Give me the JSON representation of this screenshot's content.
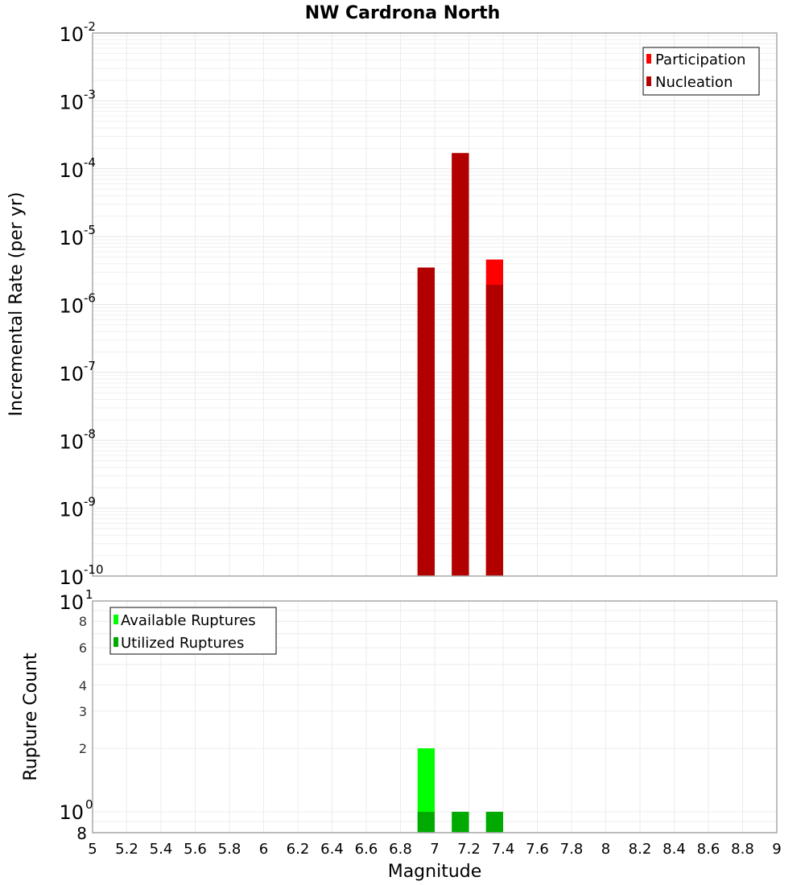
{
  "chart_data": [
    {
      "type": "bar",
      "title": "NW Cardrona North",
      "xlabel": "Magnitude",
      "ylabel": "Incremental Rate (per yr)",
      "yscale": "log",
      "xlim": [
        5,
        9
      ],
      "ylim": [
        1e-10,
        0.01
      ],
      "bar_width": 0.1,
      "grid": true,
      "legend_position": "top-right",
      "x": [
        6.95,
        7.15,
        7.35
      ],
      "series": [
        {
          "name": "Participation",
          "color": "#ff0000",
          "values": [
            3.5e-06,
            0.00017,
            4.6e-06
          ]
        },
        {
          "name": "Nucleation",
          "color": "#b20000",
          "values": [
            3.5e-06,
            0.00017,
            1.95e-06
          ]
        }
      ],
      "y_ticks": [
        {
          "base": "10",
          "exp": "-2"
        },
        {
          "base": "10",
          "exp": "-3"
        },
        {
          "base": "10",
          "exp": "-4"
        },
        {
          "base": "10",
          "exp": "-5"
        },
        {
          "base": "10",
          "exp": "-6"
        },
        {
          "base": "10",
          "exp": "-7"
        },
        {
          "base": "10",
          "exp": "-8"
        },
        {
          "base": "10",
          "exp": "-9"
        },
        {
          "base": "10",
          "exp": "-10"
        }
      ]
    },
    {
      "type": "bar",
      "title": "",
      "xlabel": "Magnitude",
      "ylabel": "Rupture Count",
      "yscale": "log",
      "xlim": [
        5,
        9
      ],
      "ylim": [
        0.8,
        10
      ],
      "bar_width": 0.1,
      "grid": true,
      "legend_position": "top-left",
      "x": [
        6.95,
        7.15,
        7.35
      ],
      "series": [
        {
          "name": "Available Ruptures",
          "color": "#00ff00",
          "values": [
            2,
            1,
            1
          ]
        },
        {
          "name": "Utilized Ruptures",
          "color": "#00aa00",
          "values": [
            1,
            1,
            1
          ]
        }
      ],
      "y_ticks": [
        "10^1",
        "8",
        "6",
        "4",
        "3",
        "2",
        "10^0",
        "8"
      ]
    }
  ],
  "x_ticks": [
    "5",
    "5.2",
    "5.4",
    "5.6",
    "5.8",
    "6",
    "6.2",
    "6.4",
    "6.6",
    "6.8",
    "7",
    "7.2",
    "7.4",
    "7.6",
    "7.8",
    "8",
    "8.2",
    "8.4",
    "8.6",
    "8.8",
    "9"
  ],
  "labels": {
    "title": "NW Cardrona North",
    "xlabel": "Magnitude",
    "ylabel_top": "Incremental Rate (per yr)",
    "ylabel_bottom": "Rupture Count",
    "legend_top": [
      "Participation",
      "Nucleation"
    ],
    "legend_bottom": [
      "Available Ruptures",
      "Utilized Ruptures"
    ],
    "bottom_ticks": {
      "t10": "10",
      "t10exp": "1",
      "t8a": "8",
      "t6": "6",
      "t4": "4",
      "t3": "3",
      "t2": "2",
      "t1": "10",
      "t1exp": "0",
      "t8b": "8"
    }
  }
}
